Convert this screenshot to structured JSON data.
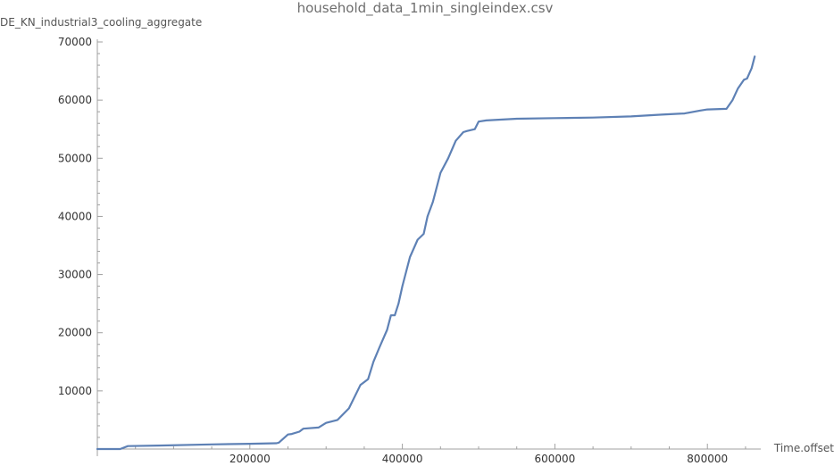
{
  "chart_data": {
    "type": "line",
    "title": "household_data_1min_singleindex.csv",
    "xlabel": "Time.offset",
    "ylabel": "DE_KN_industrial3_cooling_aggregate",
    "xlim": [
      0,
      870000
    ],
    "ylim": [
      0,
      70000
    ],
    "xticks": [
      200000,
      400000,
      600000,
      800000
    ],
    "xtick_labels": [
      "200000",
      "400000",
      "600000",
      "800000"
    ],
    "yticks": [
      10000,
      20000,
      30000,
      40000,
      50000,
      60000,
      70000
    ],
    "ytick_labels": [
      "10000",
      "20000",
      "30000",
      "40000",
      "50000",
      "60000",
      "70000"
    ],
    "grid": false,
    "colors": {
      "series": "#5e81b5",
      "axis": "#a0a0a0"
    },
    "series": [
      {
        "x": [
          0,
          30000,
          40000,
          80000,
          150000,
          200000,
          235000,
          238000,
          250000,
          255000,
          265000,
          270000,
          290000,
          300000,
          315000,
          330000,
          345000,
          355000,
          362000,
          370000,
          380000,
          385000,
          390000,
          395000,
          400000,
          410000,
          420000,
          428000,
          433000,
          440000,
          450000,
          460000,
          470000,
          480000,
          485000,
          495000,
          500000,
          510000,
          550000,
          600000,
          650000,
          700000,
          740000,
          770000,
          790000,
          800000,
          825000,
          833000,
          840000,
          848000,
          852000,
          858000,
          862000
        ],
        "y": [
          0,
          0,
          500,
          600,
          800,
          900,
          1000,
          1100,
          2500,
          2600,
          3000,
          3500,
          3700,
          4500,
          5000,
          7000,
          11000,
          12000,
          15000,
          17500,
          20500,
          23000,
          23000,
          25000,
          28000,
          33000,
          36000,
          37000,
          40000,
          42500,
          47500,
          50000,
          53000,
          54500,
          54700,
          55000,
          56300,
          56500,
          56800,
          56900,
          57000,
          57200,
          57500,
          57700,
          58200,
          58400,
          58500,
          60000,
          62000,
          63500,
          63700,
          65500,
          67500
        ]
      }
    ]
  }
}
